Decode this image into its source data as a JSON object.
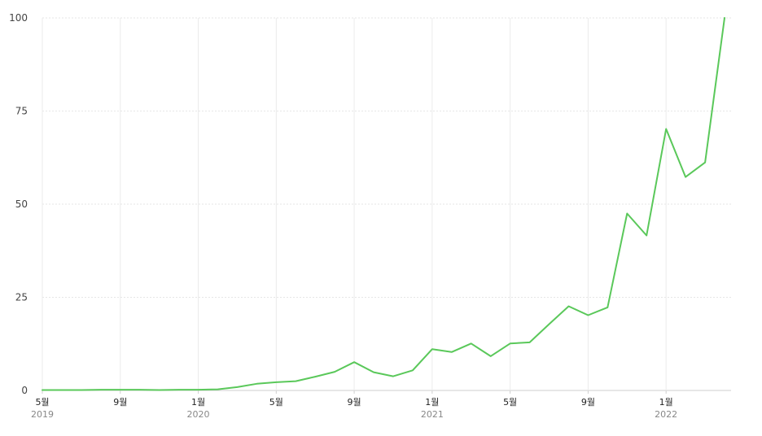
{
  "chart_data": {
    "type": "line",
    "title": "",
    "xlabel": "",
    "ylabel": "",
    "ylim": [
      0,
      100
    ],
    "yticks": [
      "0",
      "25",
      "50",
      "75",
      "100"
    ],
    "xticks": [
      {
        "date": "2019-05",
        "label": "5월",
        "year": "2019"
      },
      {
        "date": "2019-09",
        "label": "9월",
        "year": ""
      },
      {
        "date": "2020-01",
        "label": "1월",
        "year": "2020"
      },
      {
        "date": "2020-05",
        "label": "5월",
        "year": ""
      },
      {
        "date": "2020-09",
        "label": "9월",
        "year": ""
      },
      {
        "date": "2021-01",
        "label": "1월",
        "year": "2021"
      },
      {
        "date": "2021-05",
        "label": "5월",
        "year": ""
      },
      {
        "date": "2021-09",
        "label": "9월",
        "year": ""
      },
      {
        "date": "2022-01",
        "label": "1월",
        "year": "2022"
      }
    ],
    "grid": true,
    "series": [
      {
        "color": "#5ac85a",
        "x": [
          "2019-05",
          "2019-06",
          "2019-07",
          "2019-08",
          "2019-09",
          "2019-10",
          "2019-11",
          "2019-12",
          "2020-01",
          "2020-02",
          "2020-03",
          "2020-04",
          "2020-05",
          "2020-06",
          "2020-07",
          "2020-08",
          "2020-09",
          "2020-10",
          "2020-11",
          "2020-12",
          "2021-01",
          "2021-02",
          "2021-03",
          "2021-04",
          "2021-05",
          "2021-06",
          "2021-07",
          "2021-08",
          "2021-09",
          "2021-10",
          "2021-11",
          "2021-12",
          "2022-01",
          "2022-02",
          "2022-03",
          "2022-04"
        ],
        "values": [
          0.1,
          0.1,
          0.1,
          0.2,
          0.2,
          0.2,
          0.1,
          0.2,
          0.2,
          0.3,
          0.9,
          1.8,
          2.2,
          2.5,
          3.7,
          5.0,
          7.6,
          4.9,
          3.8,
          5.4,
          11.1,
          10.3,
          12.6,
          9.2,
          12.6,
          12.9,
          17.8,
          22.6,
          20.2,
          22.3,
          47.5,
          41.6,
          70.2,
          57.3,
          61.2,
          100
        ]
      }
    ]
  }
}
